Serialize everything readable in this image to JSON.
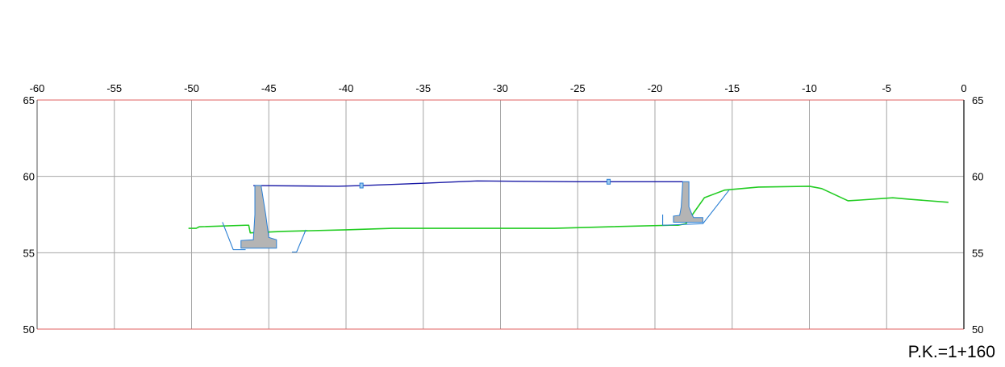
{
  "chart_data": {
    "type": "line",
    "title": "",
    "xlabel": "",
    "ylabel": "",
    "xlim": [
      -60,
      0
    ],
    "ylim": [
      50,
      65
    ],
    "grid": true,
    "x_ticks": [
      -60,
      -55,
      -50,
      -45,
      -40,
      -35,
      -30,
      -25,
      -20,
      -15,
      -10,
      -5,
      0
    ],
    "y_ticks": [
      50,
      55,
      60,
      65
    ],
    "annotation": "P.K.=1+160",
    "colors": {
      "grid": "#a6a6a6",
      "border": "#e06060",
      "terrain": "#22cc22",
      "design": "#1a1aa6",
      "excavation": "#2a7fd4",
      "structure": "#b4b4b4"
    },
    "series": [
      {
        "key": "terrain",
        "points": [
          [
            -50.2,
            56.6
          ],
          [
            -49.7,
            56.6
          ],
          [
            -49.5,
            56.7
          ],
          [
            -46.5,
            56.8
          ],
          [
            -46.3,
            56.8
          ],
          [
            -46.2,
            56.3
          ],
          [
            -44.0,
            56.4
          ],
          [
            -40.0,
            56.5
          ],
          [
            -37.0,
            56.6
          ],
          [
            -32.0,
            56.6
          ],
          [
            -26.5,
            56.6
          ],
          [
            -23.0,
            56.7
          ],
          [
            -19.0,
            56.8
          ],
          [
            -18.5,
            56.8
          ],
          [
            -18.0,
            56.9
          ],
          [
            -17.5,
            57.6
          ],
          [
            -16.8,
            58.6
          ],
          [
            -15.5,
            59.1
          ],
          [
            -13.3,
            59.3
          ],
          [
            -10.0,
            59.35
          ],
          [
            -9.2,
            59.2
          ],
          [
            -7.5,
            58.4
          ],
          [
            -6.7,
            58.45
          ],
          [
            -4.6,
            58.6
          ],
          [
            -3.5,
            58.5
          ],
          [
            -1.0,
            58.3
          ]
        ]
      },
      {
        "key": "design",
        "points": [
          [
            -46.0,
            59.4
          ],
          [
            -40.5,
            59.35
          ],
          [
            -39.0,
            59.4
          ],
          [
            -35.0,
            59.55
          ],
          [
            -31.5,
            59.7
          ],
          [
            -25.0,
            59.65
          ],
          [
            -21.0,
            59.65
          ],
          [
            -19.5,
            59.65
          ],
          [
            -18.2,
            59.65
          ]
        ]
      },
      {
        "key": "excavation",
        "points": [
          [
            -48.0,
            57.0
          ],
          [
            -47.3,
            55.2
          ],
          [
            -46.5,
            55.2
          ]
        ]
      },
      {
        "key": "excavation",
        "points": [
          [
            -43.5,
            55.05
          ],
          [
            -43.2,
            55.05
          ],
          [
            -42.6,
            56.5
          ]
        ]
      },
      {
        "key": "excavation",
        "points": [
          [
            -19.5,
            57.5
          ],
          [
            -19.5,
            56.8
          ],
          [
            -16.9,
            56.9
          ],
          [
            -15.2,
            59.1
          ]
        ]
      }
    ],
    "structures": [
      {
        "key": "left-retaining-wall",
        "outline": [
          [
            -45.9,
            59.4
          ],
          [
            -45.5,
            59.4
          ],
          [
            -45.2,
            57.5
          ],
          [
            -45.0,
            56.0
          ],
          [
            -44.5,
            55.85
          ],
          [
            -44.5,
            55.3
          ],
          [
            -46.0,
            55.3
          ],
          [
            -46.8,
            55.3
          ],
          [
            -46.8,
            55.8
          ],
          [
            -46.0,
            55.85
          ],
          [
            -45.9,
            57.5
          ]
        ]
      },
      {
        "key": "right-retaining-wall",
        "outline": [
          [
            -18.2,
            59.65
          ],
          [
            -17.8,
            59.65
          ],
          [
            -17.8,
            58.0
          ],
          [
            -17.6,
            57.5
          ],
          [
            -17.5,
            57.3
          ],
          [
            -16.9,
            57.3
          ],
          [
            -16.9,
            57.0
          ],
          [
            -18.8,
            57.0
          ],
          [
            -18.8,
            57.4
          ],
          [
            -18.4,
            57.45
          ],
          [
            -18.3,
            58.0
          ]
        ]
      }
    ],
    "markers": [
      [
        -39.0,
        59.4
      ],
      [
        -23.0,
        59.65
      ]
    ]
  }
}
